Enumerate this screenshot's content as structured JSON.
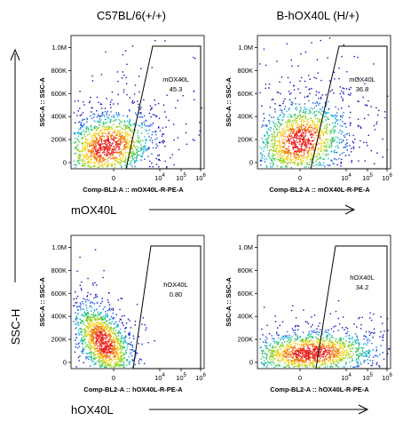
{
  "figure": {
    "column_headers": [
      "C57BL/6(+/+)",
      "B-hOX40L (H/+)"
    ],
    "row_axis_labels": [
      "mOX40L",
      "hOX40L"
    ],
    "side_label": "SSC-H"
  },
  "chart_data": [
    {
      "type": "scatter",
      "panel": "top-left",
      "column": "C57BL/6(+/+)",
      "xlabel": "Comp-BL2-A :: mOX40L-R-PE-A",
      "ylabel": "SSC-A",
      "x_tick_labels": [
        "0",
        "10^4",
        "10^5",
        "10^6"
      ],
      "y_tick_labels": [
        "0",
        "200K",
        "400K",
        "600K",
        "800K",
        "1.0M"
      ],
      "ylim": [
        0,
        1050000
      ],
      "gate": {
        "name": "mOX40L",
        "value": "45.3"
      },
      "population": "broad cloud, half inside gate"
    },
    {
      "type": "scatter",
      "panel": "top-right",
      "column": "B-hOX40L (H/+)",
      "xlabel": "Comp-BL2-A :: mOX40L-R-PE-A",
      "ylabel": "SSC-A",
      "x_tick_labels": [
        "0",
        "10^4",
        "10^5",
        "10^6"
      ],
      "y_tick_labels": [
        "0",
        "200K",
        "400K",
        "600K",
        "800K",
        "1.0M"
      ],
      "ylim": [
        0,
        1050000
      ],
      "gate": {
        "name": "mOX40L",
        "value": "36.8"
      },
      "population": "broad cloud, about a third inside gate"
    },
    {
      "type": "scatter",
      "panel": "bottom-left",
      "column": "C57BL/6(+/+)",
      "xlabel": "Comp-BL2-A :: hOX40L-R-PE-A",
      "ylabel": "SSC-A",
      "x_tick_labels": [
        "0",
        "10^4",
        "10^5",
        "10^6"
      ],
      "y_tick_labels": [
        "0",
        "200K",
        "400K",
        "600K",
        "800K",
        "1.0M"
      ],
      "ylim": [
        0,
        1050000
      ],
      "gate": {
        "name": "hOX40L",
        "value": "0.80"
      },
      "population": "diagonal negative population left of gate"
    },
    {
      "type": "scatter",
      "panel": "bottom-right",
      "column": "B-hOX40L (H/+)",
      "xlabel": "Comp-BL2-A :: hOX40L-R-PE-A",
      "ylabel": "SSC-A",
      "x_tick_labels": [
        "0",
        "10^4",
        "10^5",
        "10^6"
      ],
      "y_tick_labels": [
        "0",
        "200K",
        "400K",
        "600K",
        "800K",
        "1.0M"
      ],
      "ylim": [
        0,
        1050000
      ],
      "gate": {
        "name": "hOX40L",
        "value": "34.2"
      },
      "population": "horizontally spread, low SSC, partially inside gate"
    }
  ]
}
